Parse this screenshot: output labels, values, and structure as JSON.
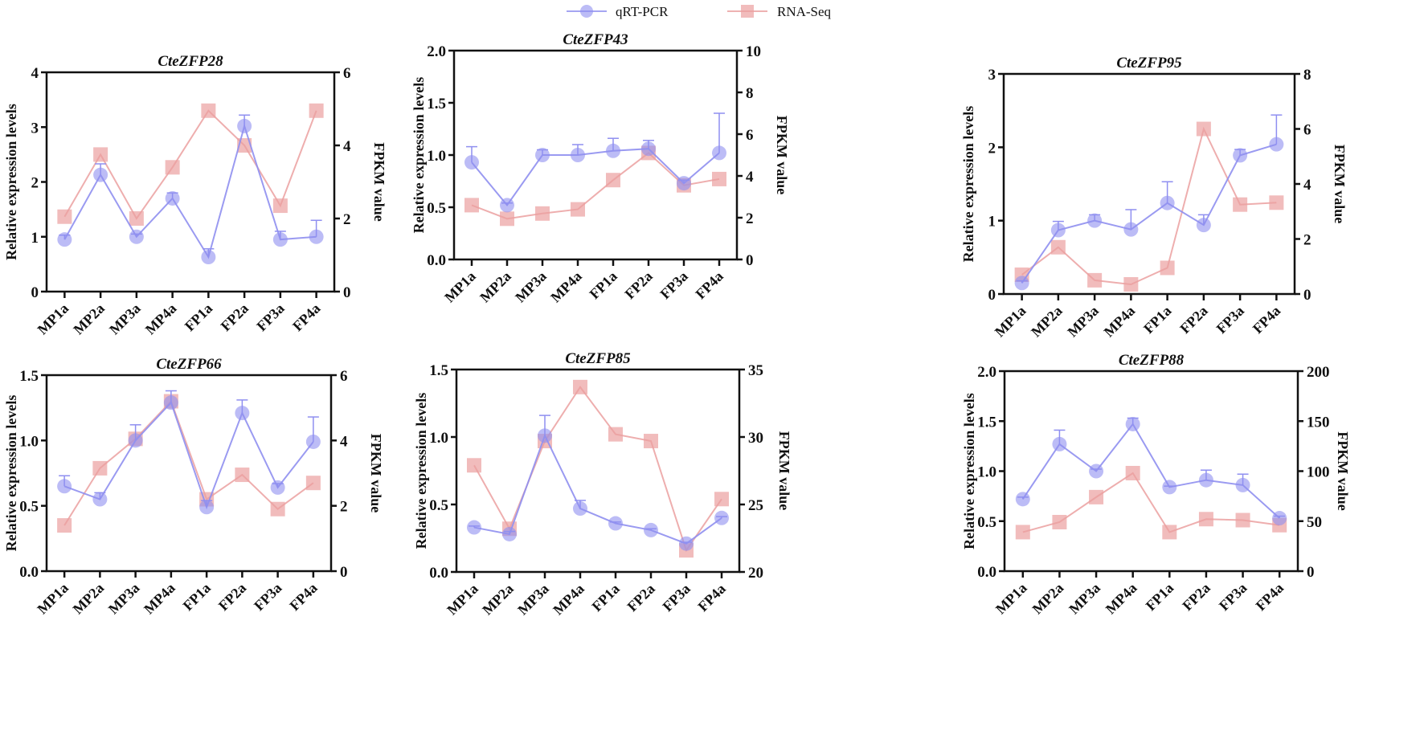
{
  "chart_data": [
    {
      "type": "line",
      "title": "CteZFP28",
      "categories": [
        "MP1a",
        "MP2a",
        "MP3a",
        "MP4a",
        "FP1a",
        "FP2a",
        "FP3a",
        "FP4a"
      ],
      "ylabel": "Relative expression levels",
      "y2label": "FPKM value",
      "ylim": [
        0,
        4
      ],
      "yticks": [
        "0",
        "1",
        "2",
        "3",
        "4"
      ],
      "y2lim": [
        0,
        6
      ],
      "y2ticks": [
        "0",
        "2",
        "4",
        "6"
      ],
      "series": [
        {
          "name": "qRT-PCR",
          "axis": "left",
          "values": [
            0.95,
            2.13,
            1.0,
            1.7,
            0.63,
            3.02,
            0.95,
            1.0
          ],
          "errors": [
            0.08,
            0.2,
            0.05,
            0.1,
            0.15,
            0.2,
            0.15,
            0.3
          ]
        },
        {
          "name": "RNA-Seq",
          "axis": "right",
          "values": [
            2.05,
            3.75,
            2.0,
            3.4,
            4.95,
            4.0,
            2.35,
            4.95
          ]
        }
      ]
    },
    {
      "type": "line",
      "title": "CteZFP43",
      "categories": [
        "MP1a",
        "MP2a",
        "MP3a",
        "MP4a",
        "FP1a",
        "FP2a",
        "FP3a",
        "FP4a"
      ],
      "ylabel": "Relative expression levels",
      "y2label": "FPKM value",
      "ylim": [
        0,
        2
      ],
      "yticks": [
        "0.0",
        "0.5",
        "1.0",
        "1.5",
        "2.0"
      ],
      "y2lim": [
        0,
        10
      ],
      "y2ticks": [
        "0",
        "2",
        "4",
        "6",
        "8",
        "10"
      ],
      "series": [
        {
          "name": "qRT-PCR",
          "axis": "left",
          "values": [
            0.93,
            0.52,
            1.0,
            1.0,
            1.04,
            1.06,
            0.73,
            1.02
          ],
          "errors": [
            0.15,
            0.02,
            0.05,
            0.1,
            0.12,
            0.08,
            0.03,
            0.38
          ]
        },
        {
          "name": "RNA-Seq",
          "axis": "right",
          "values": [
            2.6,
            1.95,
            2.2,
            2.4,
            3.8,
            5.1,
            3.55,
            3.85
          ]
        }
      ]
    },
    {
      "type": "line",
      "title": "CteZFP95",
      "categories": [
        "MP1a",
        "MP2a",
        "MP3a",
        "MP4a",
        "FP1a",
        "FP2a",
        "FP3a",
        "FP4a"
      ],
      "ylabel": "Relative expression levels",
      "y2label": "FPKM value",
      "ylim": [
        0,
        3
      ],
      "yticks": [
        "0",
        "1",
        "2",
        "3"
      ],
      "y2lim": [
        0,
        8
      ],
      "y2ticks": [
        "0",
        "2",
        "4",
        "6",
        "8"
      ],
      "series": [
        {
          "name": "qRT-PCR",
          "axis": "left",
          "values": [
            0.15,
            0.87,
            1.0,
            0.88,
            1.24,
            0.94,
            1.89,
            2.04
          ],
          "errors": [
            0.03,
            0.12,
            0.08,
            0.27,
            0.29,
            0.14,
            0.08,
            0.4
          ]
        },
        {
          "name": "RNA-Seq",
          "axis": "right",
          "values": [
            0.7,
            1.7,
            0.5,
            0.35,
            0.95,
            6.0,
            3.25,
            3.32
          ]
        }
      ]
    },
    {
      "type": "line",
      "title": "CteZFP66",
      "categories": [
        "MP1a",
        "MP2a",
        "MP3a",
        "MP4a",
        "FP1a",
        "FP2a",
        "FP3a",
        "FP4a"
      ],
      "ylabel": "Relative expression levels",
      "y2label": "FPKM value",
      "ylim": [
        0,
        1.5
      ],
      "yticks": [
        "0.0",
        "0.5",
        "1.0",
        "1.5"
      ],
      "y2lim": [
        0,
        6
      ],
      "y2ticks": [
        "0",
        "2",
        "4",
        "6"
      ],
      "series": [
        {
          "name": "qRT-PCR",
          "axis": "left",
          "values": [
            0.65,
            0.55,
            1.0,
            1.29,
            0.49,
            1.21,
            0.64,
            0.99
          ],
          "errors": [
            0.08,
            0.05,
            0.12,
            0.09,
            0.05,
            0.1,
            0.03,
            0.19
          ]
        },
        {
          "name": "RNA-Seq",
          "axis": "right",
          "values": [
            1.4,
            3.15,
            4.05,
            5.2,
            2.2,
            2.95,
            1.9,
            2.7
          ]
        }
      ]
    },
    {
      "type": "line",
      "title": "CteZFP85",
      "categories": [
        "MP1a",
        "MP2a",
        "MP3a",
        "MP4a",
        "FP1a",
        "FP2a",
        "FP3a",
        "FP4a"
      ],
      "ylabel": "Relative expression levels",
      "y2label": "FPKM value",
      "ylim": [
        0,
        1.5
      ],
      "yticks": [
        "0.0",
        "0.5",
        "1.0",
        "1.5"
      ],
      "y2lim": [
        20,
        35
      ],
      "y2ticks": [
        "20",
        "25",
        "30",
        "35"
      ],
      "series": [
        {
          "name": "qRT-PCR",
          "axis": "left",
          "values": [
            0.33,
            0.28,
            1.01,
            0.47,
            0.36,
            0.31,
            0.21,
            0.4
          ],
          "errors": [
            0.01,
            0.02,
            0.15,
            0.06,
            0.01,
            0.01,
            0.01,
            0.01
          ]
        },
        {
          "name": "RNA-Seq",
          "axis": "right",
          "values": [
            27.9,
            23.2,
            29.7,
            33.7,
            30.2,
            29.7,
            21.6,
            25.4
          ]
        }
      ]
    },
    {
      "type": "line",
      "title": "CteZFP88",
      "categories": [
        "MP1a",
        "MP2a",
        "MP3a",
        "MP4a",
        "FP1a",
        "FP2a",
        "FP3a",
        "FP4a"
      ],
      "ylabel": "Relative expression levels",
      "y2label": "FPKM value",
      "ylim": [
        0,
        2
      ],
      "yticks": [
        "0.0",
        "0.5",
        "1.0",
        "1.5",
        "2.0"
      ],
      "y2lim": [
        0,
        200
      ],
      "y2ticks": [
        "0",
        "50",
        "100",
        "150",
        "200"
      ],
      "series": [
        {
          "name": "qRT-PCR",
          "axis": "left",
          "values": [
            0.72,
            1.27,
            1.0,
            1.47,
            0.84,
            0.91,
            0.86,
            0.53
          ],
          "errors": [
            0.02,
            0.14,
            0.02,
            0.06,
            0.01,
            0.1,
            0.11,
            0.02
          ]
        },
        {
          "name": "RNA-Seq",
          "axis": "right",
          "values": [
            39,
            49,
            74,
            98,
            39,
            52,
            51,
            46
          ]
        }
      ]
    }
  ],
  "legend": {
    "items": [
      "qRT-PCR",
      "RNA-Seq"
    ],
    "placement": "top-center"
  },
  "colors": {
    "qrt": "#8f8ff0",
    "rna": "#eba0a0"
  }
}
